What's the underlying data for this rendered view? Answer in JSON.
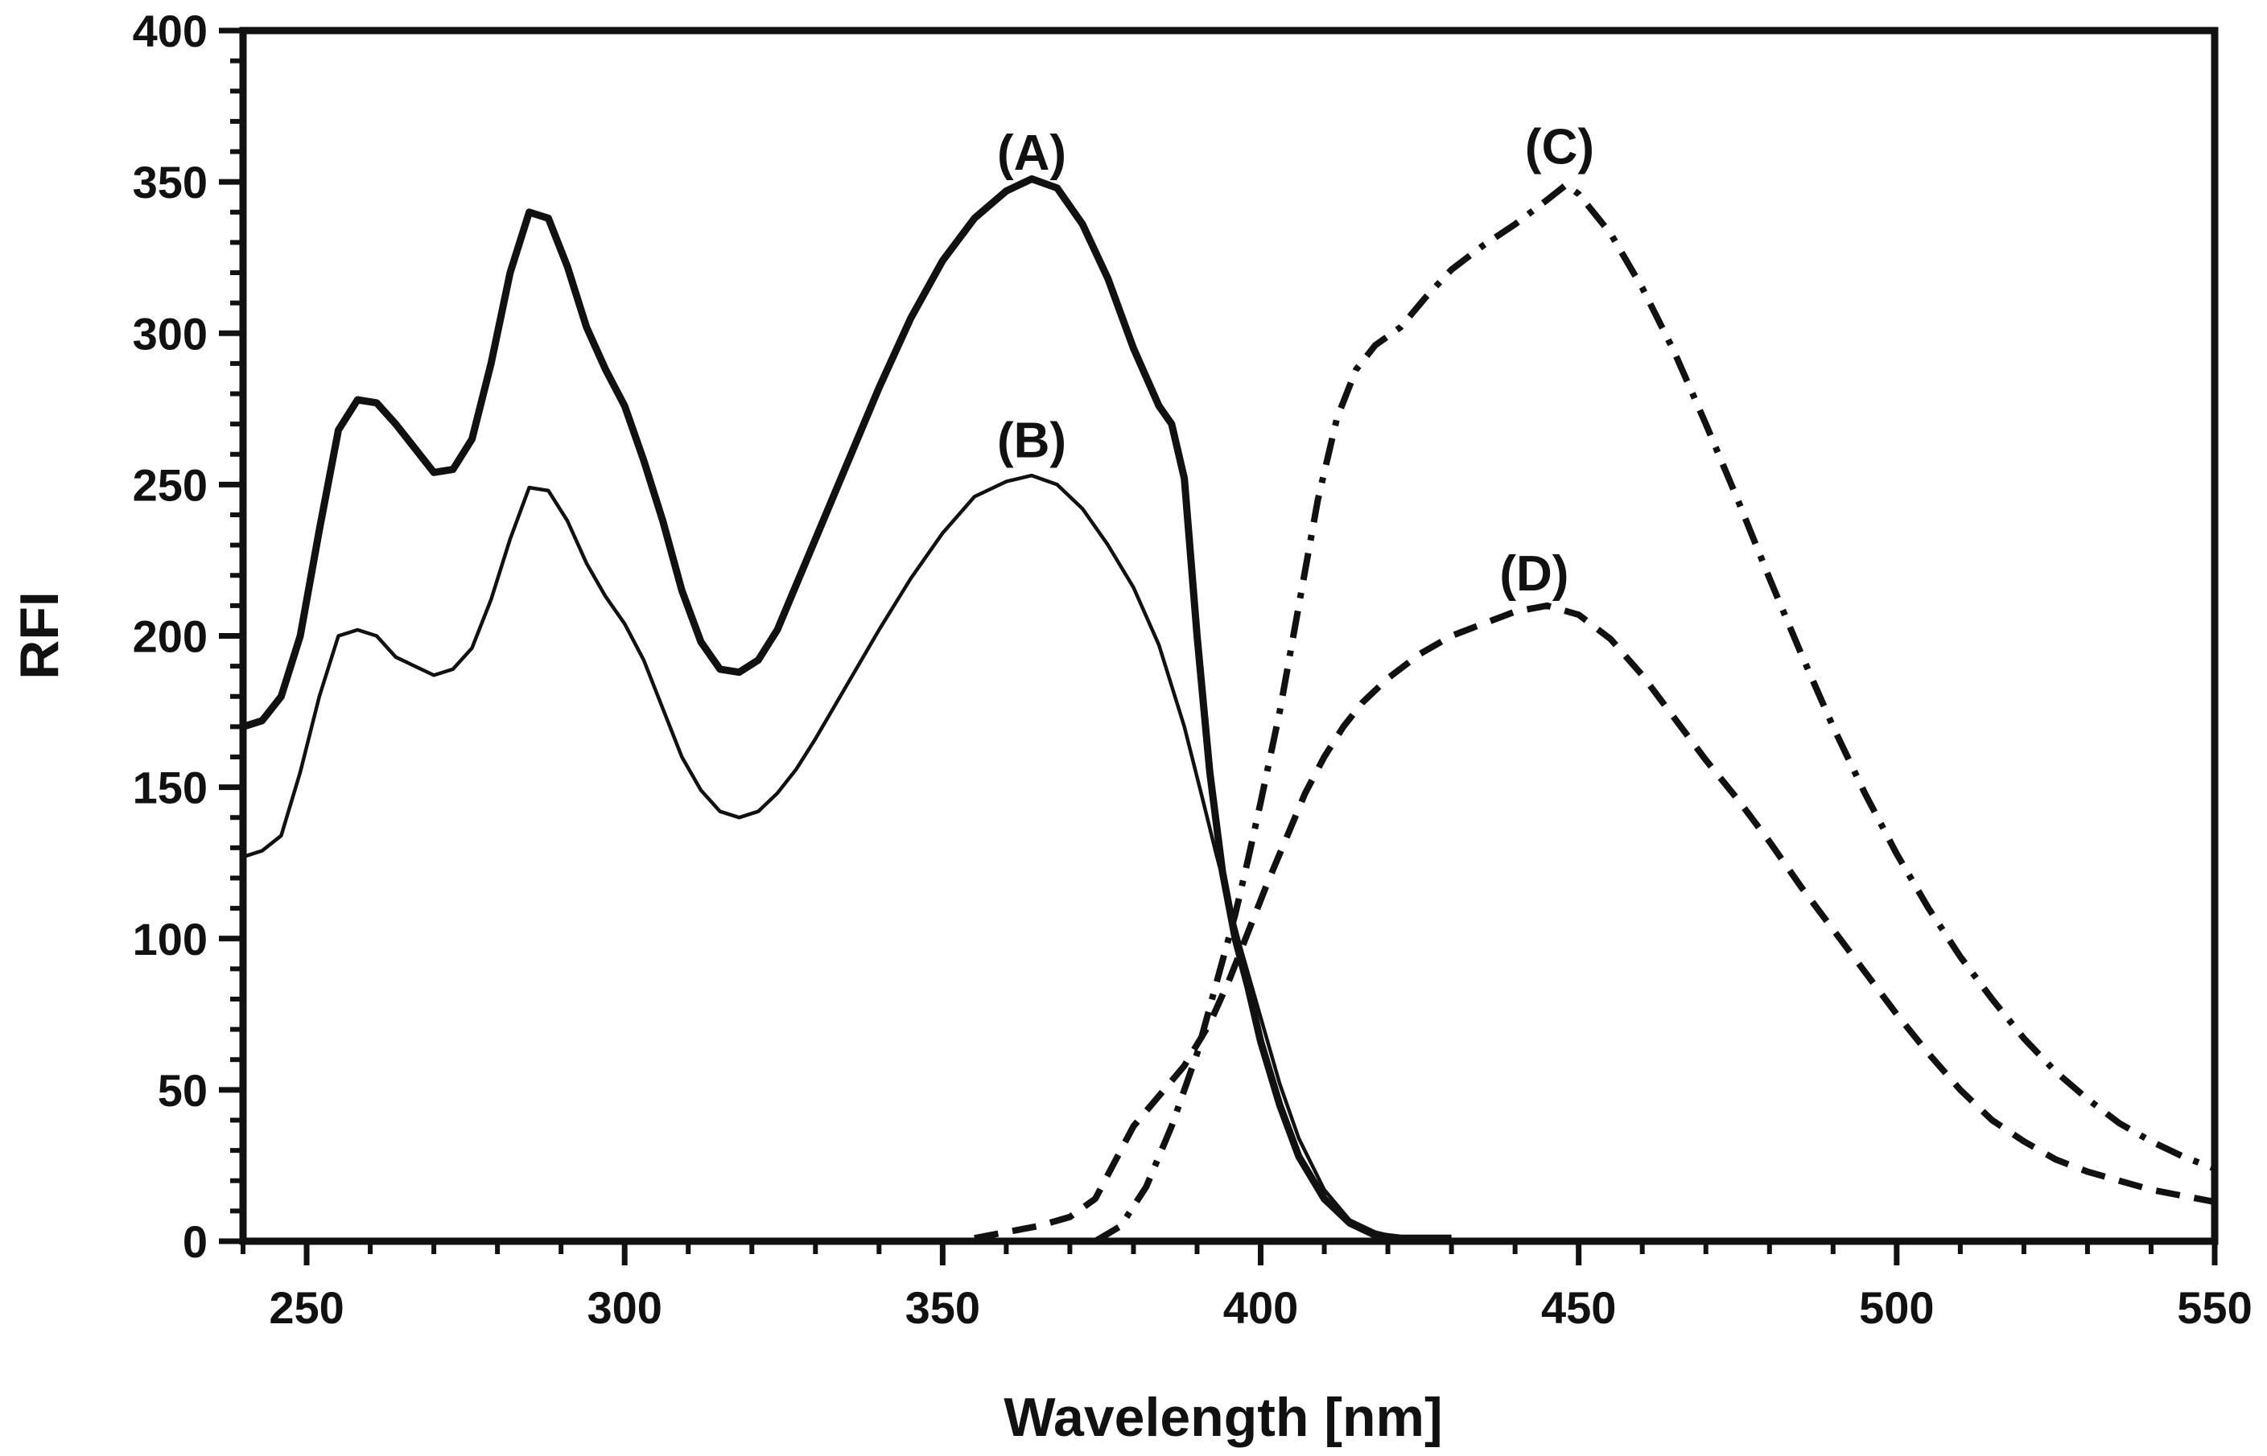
{
  "chart_data": {
    "type": "line",
    "title": "",
    "xlabel": "Wavelength [nm]",
    "ylabel": "RFI",
    "xlim": [
      240,
      550
    ],
    "ylim": [
      0,
      400
    ],
    "x_ticks": [
      250,
      300,
      350,
      400,
      450,
      500,
      550
    ],
    "x_tick_labels": [
      "250",
      "300",
      "350",
      "400",
      "450",
      "500",
      "550"
    ],
    "y_ticks": [
      0,
      50,
      100,
      150,
      200,
      250,
      300,
      350,
      400
    ],
    "y_tick_labels": [
      "0",
      "50",
      "100",
      "150",
      "200",
      "250",
      "300",
      "350",
      "400"
    ],
    "grid": false,
    "legend": "none",
    "series": [
      {
        "name": "(A)",
        "style": "solid-thick",
        "label_at": [
          364,
          354
        ],
        "points": [
          [
            240,
            170
          ],
          [
            243,
            172
          ],
          [
            246,
            180
          ],
          [
            249,
            200
          ],
          [
            252,
            235
          ],
          [
            255,
            268
          ],
          [
            258,
            278
          ],
          [
            261,
            277
          ],
          [
            264,
            270
          ],
          [
            267,
            262
          ],
          [
            270,
            254
          ],
          [
            273,
            255
          ],
          [
            276,
            265
          ],
          [
            279,
            290
          ],
          [
            282,
            320
          ],
          [
            285,
            340
          ],
          [
            288,
            338
          ],
          [
            291,
            322
          ],
          [
            294,
            302
          ],
          [
            297,
            288
          ],
          [
            300,
            276
          ],
          [
            303,
            258
          ],
          [
            306,
            238
          ],
          [
            309,
            215
          ],
          [
            312,
            198
          ],
          [
            315,
            189
          ],
          [
            318,
            188
          ],
          [
            321,
            192
          ],
          [
            324,
            202
          ],
          [
            327,
            217
          ],
          [
            330,
            232
          ],
          [
            335,
            257
          ],
          [
            340,
            282
          ],
          [
            345,
            305
          ],
          [
            350,
            324
          ],
          [
            355,
            338
          ],
          [
            360,
            347
          ],
          [
            364,
            351
          ],
          [
            368,
            348
          ],
          [
            372,
            336
          ],
          [
            376,
            318
          ],
          [
            380,
            295
          ],
          [
            384,
            276
          ],
          [
            386,
            270
          ],
          [
            388,
            252
          ],
          [
            390,
            200
          ],
          [
            392,
            155
          ],
          [
            394,
            122
          ],
          [
            396,
            100
          ],
          [
            398,
            84
          ],
          [
            400,
            66
          ],
          [
            403,
            45
          ],
          [
            406,
            28
          ],
          [
            410,
            14
          ],
          [
            414,
            6
          ],
          [
            418,
            2
          ],
          [
            422,
            1
          ],
          [
            426,
            1
          ],
          [
            430,
            1
          ]
        ]
      },
      {
        "name": "(B)",
        "style": "solid-thin",
        "label_at": [
          364,
          259
        ],
        "points": [
          [
            240,
            127
          ],
          [
            243,
            129
          ],
          [
            246,
            134
          ],
          [
            249,
            155
          ],
          [
            252,
            180
          ],
          [
            255,
            200
          ],
          [
            258,
            202
          ],
          [
            261,
            200
          ],
          [
            264,
            193
          ],
          [
            267,
            190
          ],
          [
            270,
            187
          ],
          [
            273,
            189
          ],
          [
            276,
            196
          ],
          [
            279,
            212
          ],
          [
            282,
            232
          ],
          [
            285,
            249
          ],
          [
            288,
            248
          ],
          [
            291,
            238
          ],
          [
            294,
            224
          ],
          [
            297,
            213
          ],
          [
            300,
            204
          ],
          [
            303,
            192
          ],
          [
            306,
            176
          ],
          [
            309,
            160
          ],
          [
            312,
            149
          ],
          [
            315,
            142
          ],
          [
            318,
            140
          ],
          [
            321,
            142
          ],
          [
            324,
            148
          ],
          [
            327,
            156
          ],
          [
            330,
            166
          ],
          [
            335,
            184
          ],
          [
            340,
            202
          ],
          [
            345,
            219
          ],
          [
            350,
            234
          ],
          [
            355,
            246
          ],
          [
            360,
            251
          ],
          [
            364,
            253
          ],
          [
            368,
            250
          ],
          [
            372,
            242
          ],
          [
            376,
            230
          ],
          [
            380,
            216
          ],
          [
            384,
            197
          ],
          [
            388,
            170
          ],
          [
            391,
            145
          ],
          [
            393,
            128
          ],
          [
            395,
            112
          ],
          [
            397,
            96
          ],
          [
            400,
            74
          ],
          [
            403,
            52
          ],
          [
            406,
            34
          ],
          [
            410,
            17
          ],
          [
            414,
            7
          ],
          [
            418,
            3
          ],
          [
            422,
            1
          ],
          [
            426,
            1
          ],
          [
            430,
            1
          ]
        ]
      },
      {
        "name": "(C)",
        "style": "dash-dot",
        "label_at": [
          447,
          356
        ],
        "points": [
          [
            374,
            0
          ],
          [
            378,
            5
          ],
          [
            382,
            18
          ],
          [
            386,
            38
          ],
          [
            390,
            62
          ],
          [
            393,
            85
          ],
          [
            396,
            108
          ],
          [
            398,
            126
          ],
          [
            400,
            145
          ],
          [
            403,
            175
          ],
          [
            406,
            210
          ],
          [
            409,
            245
          ],
          [
            412,
            272
          ],
          [
            415,
            288
          ],
          [
            418,
            296
          ],
          [
            422,
            302
          ],
          [
            426,
            312
          ],
          [
            430,
            321
          ],
          [
            435,
            329
          ],
          [
            440,
            336
          ],
          [
            445,
            344
          ],
          [
            448,
            349
          ],
          [
            450,
            346
          ],
          [
            455,
            333
          ],
          [
            460,
            315
          ],
          [
            465,
            294
          ],
          [
            470,
            270
          ],
          [
            475,
            245
          ],
          [
            480,
            219
          ],
          [
            485,
            194
          ],
          [
            490,
            170
          ],
          [
            495,
            148
          ],
          [
            500,
            128
          ],
          [
            505,
            110
          ],
          [
            510,
            94
          ],
          [
            515,
            80
          ],
          [
            520,
            67
          ],
          [
            525,
            56
          ],
          [
            530,
            47
          ],
          [
            535,
            39
          ],
          [
            540,
            33
          ],
          [
            545,
            28
          ],
          [
            550,
            24
          ]
        ]
      },
      {
        "name": "(D)",
        "style": "dashed",
        "label_at": [
          443,
          215
        ],
        "points": [
          [
            355,
            1
          ],
          [
            360,
            3
          ],
          [
            365,
            5
          ],
          [
            370,
            8
          ],
          [
            374,
            14
          ],
          [
            377,
            26
          ],
          [
            380,
            38
          ],
          [
            384,
            48
          ],
          [
            388,
            58
          ],
          [
            392,
            72
          ],
          [
            395,
            86
          ],
          [
            398,
            102
          ],
          [
            401,
            118
          ],
          [
            404,
            133
          ],
          [
            407,
            148
          ],
          [
            410,
            160
          ],
          [
            413,
            170
          ],
          [
            416,
            178
          ],
          [
            420,
            186
          ],
          [
            425,
            194
          ],
          [
            430,
            200
          ],
          [
            435,
            204
          ],
          [
            440,
            208
          ],
          [
            445,
            210
          ],
          [
            450,
            207
          ],
          [
            455,
            199
          ],
          [
            460,
            187
          ],
          [
            465,
            173
          ],
          [
            470,
            159
          ],
          [
            475,
            146
          ],
          [
            480,
            132
          ],
          [
            485,
            117
          ],
          [
            490,
            103
          ],
          [
            495,
            89
          ],
          [
            500,
            75
          ],
          [
            505,
            62
          ],
          [
            510,
            50
          ],
          [
            515,
            40
          ],
          [
            520,
            33
          ],
          [
            525,
            27
          ],
          [
            530,
            23
          ],
          [
            535,
            20
          ],
          [
            540,
            17
          ],
          [
            545,
            15
          ],
          [
            550,
            13
          ]
        ]
      }
    ]
  }
}
